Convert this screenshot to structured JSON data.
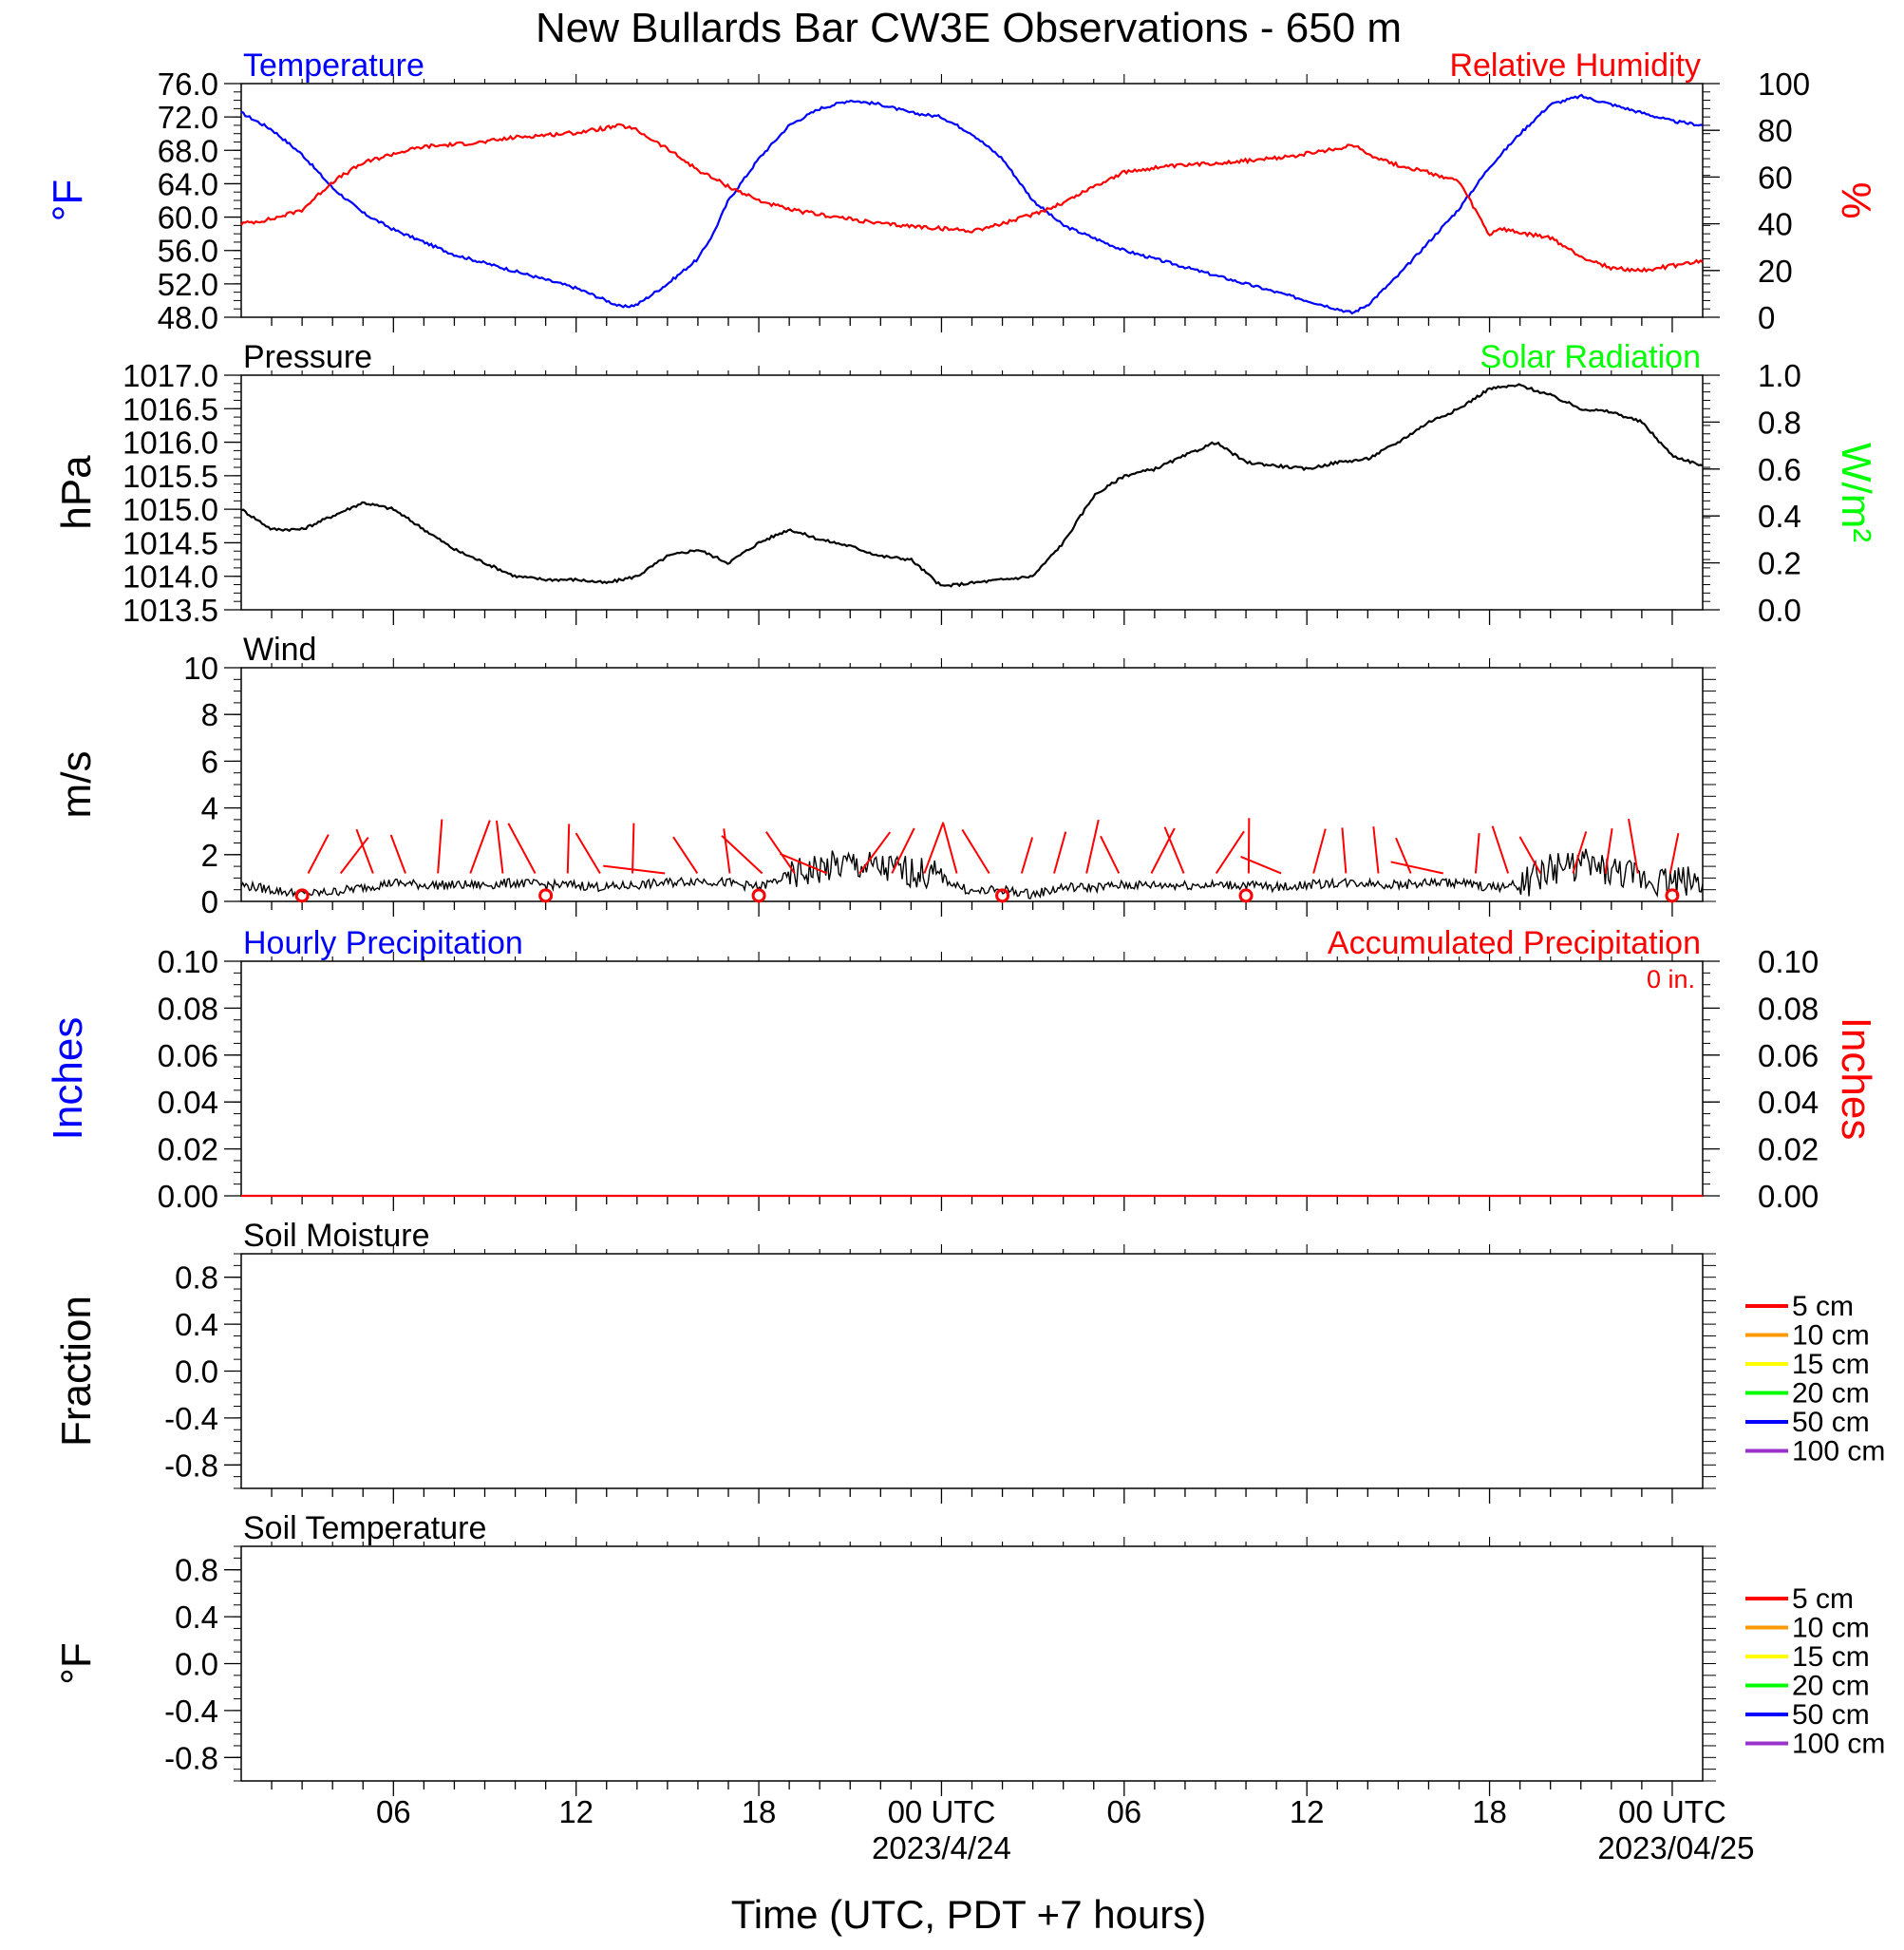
{
  "title": "New Bullards Bar CW3E Observations - 650 m",
  "xaxis": {
    "label": "Time (UTC, PDT +7 hours)",
    "ticks": [
      {
        "hour": 6,
        "label": "06"
      },
      {
        "hour": 12,
        "label": "12"
      },
      {
        "hour": 18,
        "label": "18"
      },
      {
        "hour": 24,
        "label": "00 UTC"
      },
      {
        "hour": 30,
        "label": "06"
      },
      {
        "hour": 36,
        "label": "12"
      },
      {
        "hour": 42,
        "label": "18"
      },
      {
        "hour": 48,
        "label": "00 UTC"
      }
    ],
    "dates": [
      {
        "hour": 24,
        "label": "2023/4/24"
      },
      {
        "hour": 48,
        "label": "2023/04/25"
      }
    ],
    "range_hours": [
      1,
      49
    ]
  },
  "colors": {
    "temperature": "#0000ff",
    "humidity": "#ff0000",
    "solar": "#00ff00",
    "pressure": "#000000",
    "wind": "#000000",
    "wind_barb": "#ff0000",
    "precip_hourly": "#0000ff",
    "precip_accum": "#ff0000"
  },
  "chart_data": [
    {
      "type": "line",
      "title_left": "Temperature",
      "title_right": "Relative Humidity",
      "ylabel_left": "°F",
      "ylabel_right": "%",
      "ylim_left": [
        48,
        76
      ],
      "yticks_left": [
        "48.0",
        "52.0",
        "56.0",
        "60.0",
        "64.0",
        "68.0",
        "72.0",
        "76.0"
      ],
      "ylim_right": [
        0,
        100
      ],
      "yticks_right": [
        "0",
        "20",
        "40",
        "60",
        "80",
        "100"
      ],
      "series": [
        {
          "name": "Temperature",
          "axis": "left",
          "x": [
            1,
            2,
            3,
            4,
            5,
            6,
            7,
            8,
            9,
            10,
            11,
            12,
            13,
            13.5,
            14,
            15,
            16,
            16.5,
            17,
            18,
            19,
            20,
            21,
            22,
            23,
            24,
            25,
            26,
            27,
            28,
            29,
            30,
            31,
            32,
            33,
            34,
            35,
            36,
            37,
            37.5,
            38,
            39,
            40,
            41,
            42,
            43,
            44,
            45,
            46,
            47,
            48,
            49
          ],
          "y": [
            72.5,
            70.5,
            67.5,
            63.5,
            60.5,
            58.5,
            57,
            55.5,
            54.5,
            53.5,
            52.5,
            51.5,
            50,
            49.2,
            49.5,
            52,
            55,
            58,
            62,
            67,
            71,
            73,
            74,
            73.5,
            72.5,
            72,
            70,
            67,
            62,
            59,
            57.5,
            56,
            55,
            54,
            53,
            52,
            51,
            50,
            49,
            48.5,
            49.5,
            53,
            57,
            61,
            66,
            70,
            73.5,
            74.5,
            73.5,
            72.5,
            71.5,
            71
          ]
        },
        {
          "name": "Relative Humidity",
          "axis": "right",
          "x": [
            1,
            2,
            3,
            4,
            5,
            6,
            7,
            8,
            9,
            10,
            11,
            12,
            13,
            13.5,
            14,
            15,
            16,
            17,
            18,
            19,
            20,
            21,
            22,
            23,
            24,
            25,
            26,
            27,
            28,
            29,
            30,
            31,
            32,
            33,
            34,
            35,
            36,
            37,
            37.5,
            38,
            39,
            40,
            41,
            42,
            42.3,
            43,
            44,
            45,
            46,
            47,
            48,
            49
          ],
          "y": [
            40,
            42,
            46,
            58,
            66,
            70,
            73,
            74,
            75,
            77,
            78,
            79,
            81,
            82,
            80,
            72,
            63,
            56,
            50,
            46,
            44,
            42,
            40,
            39,
            38,
            37,
            40,
            44,
            49,
            56,
            62,
            64,
            65,
            66,
            67,
            68,
            70,
            72,
            74,
            70,
            65,
            62,
            58,
            35,
            38,
            36,
            34,
            26,
            21,
            20,
            22,
            24
          ]
        }
      ]
    },
    {
      "type": "line",
      "title_left": "Pressure",
      "title_right": "Solar Radiation",
      "ylabel_left": "hPa",
      "ylabel_right": "W/m²",
      "ylim_left": [
        1013.5,
        1017
      ],
      "yticks_left": [
        "1013.5",
        "1014.0",
        "1014.5",
        "1015.0",
        "1015.5",
        "1016.0",
        "1016.5",
        "1017.0"
      ],
      "ylim_right": [
        0,
        1
      ],
      "yticks_right": [
        "0.0",
        "0.2",
        "0.4",
        "0.6",
        "0.8",
        "1.0"
      ],
      "series": [
        {
          "name": "Pressure",
          "axis": "left",
          "x": [
            1,
            2,
            3,
            4,
            5,
            6,
            7,
            8,
            9,
            10,
            11,
            12,
            13,
            14,
            15,
            16,
            17,
            18,
            19,
            20,
            21,
            22,
            23,
            24,
            25,
            26,
            27,
            28,
            29,
            30,
            31,
            32,
            33,
            34,
            35,
            36,
            37,
            38,
            39,
            40,
            41,
            42,
            43,
            44,
            45,
            46,
            47,
            48,
            49
          ],
          "y": [
            1015.0,
            1014.7,
            1014.7,
            1014.9,
            1015.1,
            1015.0,
            1014.7,
            1014.4,
            1014.2,
            1014.0,
            1013.95,
            1013.95,
            1013.9,
            1014.0,
            1014.3,
            1014.4,
            1014.2,
            1014.5,
            1014.7,
            1014.55,
            1014.45,
            1014.3,
            1014.25,
            1013.85,
            1013.9,
            1013.95,
            1014.0,
            1014.5,
            1015.2,
            1015.5,
            1015.6,
            1015.8,
            1016.0,
            1015.7,
            1015.65,
            1015.6,
            1015.7,
            1015.75,
            1016.0,
            1016.3,
            1016.5,
            1016.8,
            1016.85,
            1016.7,
            1016.5,
            1016.45,
            1016.3,
            1015.8,
            1015.65
          ]
        }
      ]
    },
    {
      "type": "line",
      "title_left": "Wind",
      "ylabel_left": "m/s",
      "ylim_left": [
        0,
        10
      ],
      "yticks_left": [
        "0",
        "2",
        "4",
        "6",
        "8",
        "10"
      ],
      "series": [
        {
          "name": "Wind",
          "axis": "left",
          "x": [
            1,
            2,
            3,
            4,
            5,
            6,
            7,
            8,
            9,
            10,
            11,
            12,
            13,
            14,
            15,
            16,
            17,
            18,
            19,
            20,
            21,
            22,
            23,
            24,
            25,
            26,
            27,
            28,
            29,
            30,
            31,
            32,
            33,
            34,
            35,
            36,
            37,
            38,
            39,
            40,
            41,
            42,
            43,
            44,
            45,
            46,
            47,
            48,
            49
          ],
          "y": [
            0.7,
            0.5,
            0.3,
            0.4,
            0.6,
            0.8,
            0.7,
            0.7,
            0.7,
            0.8,
            0.7,
            0.7,
            0.6,
            0.7,
            0.8,
            0.9,
            0.8,
            0.6,
            1.1,
            1.4,
            1.6,
            1.4,
            1.3,
            1.0,
            0.4,
            0.5,
            0.3,
            0.6,
            0.6,
            0.7,
            0.7,
            0.7,
            0.7,
            0.7,
            0.6,
            0.7,
            0.8,
            0.8,
            0.7,
            0.8,
            0.8,
            0.6,
            0.7,
            1.4,
            1.6,
            1.3,
            1.0,
            0.9,
            0.9
          ]
        }
      ],
      "calm_markers_hour": [
        3,
        11,
        18,
        26,
        34,
        48
      ],
      "barb_count": 43
    },
    {
      "type": "line",
      "title_left": "Hourly Precipitation",
      "title_right": "Accumulated Precipitation",
      "annotation": "0 in.",
      "ylabel_left": "Inches",
      "ylabel_right": "Inches",
      "ylim_left": [
        0,
        0.1
      ],
      "yticks_left": [
        "0.00",
        "0.02",
        "0.04",
        "0.06",
        "0.08",
        "0.10"
      ],
      "ylim_right": [
        0,
        0.1
      ],
      "yticks_right": [
        "0.00",
        "0.02",
        "0.04",
        "0.06",
        "0.08",
        "0.10"
      ],
      "series": [
        {
          "name": "Accumulated Precipitation",
          "axis": "right",
          "x": [
            1,
            49
          ],
          "y": [
            0,
            0
          ]
        }
      ]
    },
    {
      "type": "line",
      "title_left": "Soil Moisture",
      "ylabel_left": "Fraction",
      "ylim_left": [
        -1,
        1
      ],
      "yticks_left": [
        "-0.8",
        "-0.4",
        "0.0",
        "0.4",
        "0.8"
      ],
      "legend": [
        {
          "label": "5 cm",
          "color": "#ff0000"
        },
        {
          "label": "10 cm",
          "color": "#ff9900"
        },
        {
          "label": "15 cm",
          "color": "#ffff00"
        },
        {
          "label": "20 cm",
          "color": "#00ff00"
        },
        {
          "label": "50 cm",
          "color": "#0000ff"
        },
        {
          "label": "100 cm",
          "color": "#9933cc"
        }
      ]
    },
    {
      "type": "line",
      "title_left": "Soil Temperature",
      "ylabel_left": "°F",
      "ylim_left": [
        -1,
        1
      ],
      "yticks_left": [
        "-0.8",
        "-0.4",
        "0.0",
        "0.4",
        "0.8"
      ],
      "legend": [
        {
          "label": "5 cm",
          "color": "#ff0000"
        },
        {
          "label": "10 cm",
          "color": "#ff9900"
        },
        {
          "label": "15 cm",
          "color": "#ffff00"
        },
        {
          "label": "20 cm",
          "color": "#00ff00"
        },
        {
          "label": "50 cm",
          "color": "#0000ff"
        },
        {
          "label": "100 cm",
          "color": "#9933cc"
        }
      ]
    }
  ]
}
